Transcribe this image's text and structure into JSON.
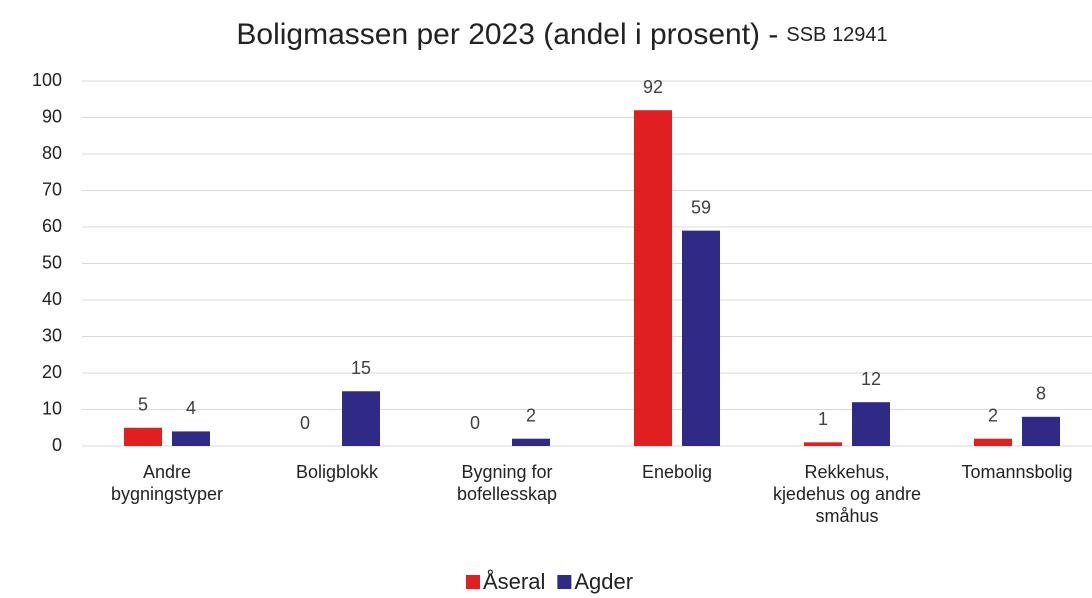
{
  "chart_data": {
    "type": "bar",
    "title": "Boligmassen per 2023 (andel i prosent) -",
    "source": "SSB 12941",
    "categories": [
      "Andre bygningstyper",
      "Boligblokk",
      "Bygning for bofellesskap",
      "Enebolig",
      "Rekkehus, kjedehus og andre småhus",
      "Tomannsbolig"
    ],
    "series": [
      {
        "name": "Åseral",
        "color": "#e02020",
        "values": [
          5,
          0,
          0,
          92,
          1,
          2
        ]
      },
      {
        "name": "Agder",
        "color": "#2e2a85",
        "values": [
          4,
          15,
          2,
          59,
          12,
          8
        ]
      }
    ],
    "ylim": [
      0,
      100
    ],
    "yticks": [
      0,
      10,
      20,
      30,
      40,
      50,
      60,
      70,
      80,
      90,
      100
    ],
    "grid": true,
    "legend": "bottom"
  }
}
